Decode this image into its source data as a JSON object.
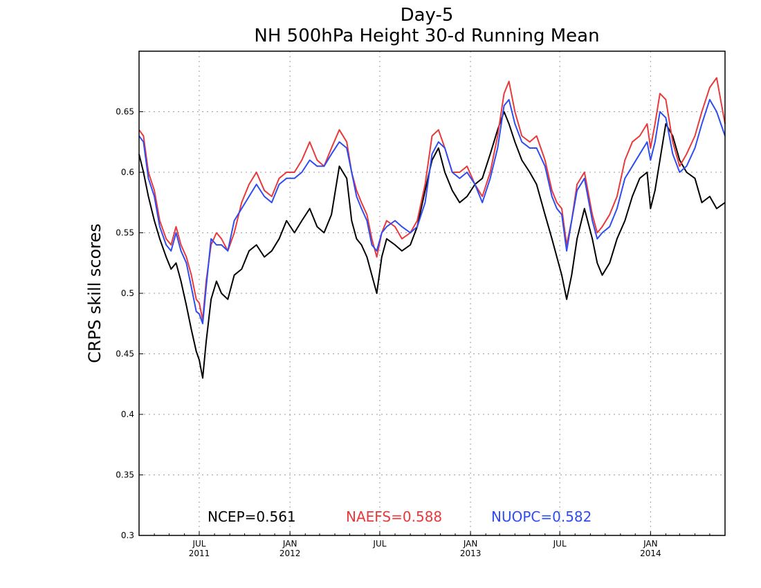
{
  "chart_data": {
    "type": "line",
    "title": "Day-5",
    "subtitle": "NH 500hPa Height 30-d Running Mean",
    "ylabel": "CRPS skill scores",
    "xlabel": "",
    "xlim": [
      "2011-03-01",
      "2014-06-01"
    ],
    "ylim": [
      0.3,
      0.7
    ],
    "grid": true,
    "legend_position": "bottom-center",
    "y_ticks": [
      {
        "value": 0.3,
        "label": "0.3"
      },
      {
        "value": 0.35,
        "label": "0.35"
      },
      {
        "value": 0.4,
        "label": "0.4"
      },
      {
        "value": 0.45,
        "label": "0.45"
      },
      {
        "value": 0.5,
        "label": "0.5"
      },
      {
        "value": 0.55,
        "label": "0.55"
      },
      {
        "value": 0.6,
        "label": "0.6"
      },
      {
        "value": 0.65,
        "label": "0.65"
      }
    ],
    "x_ticks": [
      {
        "date": "2011-07-01",
        "label": "JUL",
        "year": "2011"
      },
      {
        "date": "2012-01-01",
        "label": "JAN",
        "year": "2012"
      },
      {
        "date": "2012-07-01",
        "label": "JUL",
        "year": ""
      },
      {
        "date": "2013-01-01",
        "label": "JAN",
        "year": "2013"
      },
      {
        "date": "2013-07-01",
        "label": "JUL",
        "year": ""
      },
      {
        "date": "2014-01-01",
        "label": "JAN",
        "year": "2014"
      }
    ],
    "series": [
      {
        "name": "NCEP",
        "mean_label": "NCEP=0.561",
        "color": "#000000",
        "x": [
          "2011-03-01",
          "2011-03-10",
          "2011-03-20",
          "2011-04-01",
          "2011-04-12",
          "2011-04-25",
          "2011-05-05",
          "2011-05-15",
          "2011-05-25",
          "2011-06-05",
          "2011-06-15",
          "2011-06-25",
          "2011-07-01",
          "2011-07-08",
          "2011-07-15",
          "2011-07-25",
          "2011-08-05",
          "2011-08-15",
          "2011-08-28",
          "2011-09-10",
          "2011-09-25",
          "2011-10-10",
          "2011-10-25",
          "2011-11-10",
          "2011-11-25",
          "2011-12-10",
          "2011-12-25",
          "2012-01-10",
          "2012-01-25",
          "2012-02-10",
          "2012-02-25",
          "2012-03-10",
          "2012-03-25",
          "2012-04-10",
          "2012-04-25",
          "2012-05-05",
          "2012-05-15",
          "2012-05-25",
          "2012-06-05",
          "2012-06-15",
          "2012-06-25",
          "2012-07-05",
          "2012-07-15",
          "2012-08-01",
          "2012-08-15",
          "2012-09-01",
          "2012-09-15",
          "2012-10-01",
          "2012-10-15",
          "2012-10-28",
          "2012-11-10",
          "2012-11-25",
          "2012-12-10",
          "2012-12-25",
          "2013-01-10",
          "2013-01-25",
          "2013-02-10",
          "2013-02-25",
          "2013-03-10",
          "2013-03-20",
          "2013-04-01",
          "2013-04-15",
          "2013-05-01",
          "2013-05-15",
          "2013-06-01",
          "2013-06-15",
          "2013-06-25",
          "2013-07-05",
          "2013-07-15",
          "2013-07-25",
          "2013-08-05",
          "2013-08-20",
          "2013-09-05",
          "2013-09-15",
          "2013-09-25",
          "2013-10-10",
          "2013-10-25",
          "2013-11-10",
          "2013-11-25",
          "2013-12-10",
          "2013-12-25",
          "2014-01-01",
          "2014-01-10",
          "2014-01-20",
          "2014-02-01",
          "2014-02-15",
          "2014-03-01",
          "2014-03-15",
          "2014-04-01",
          "2014-04-15",
          "2014-05-01",
          "2014-05-15",
          "2014-06-01"
        ],
        "y": [
          0.615,
          0.6,
          0.58,
          0.56,
          0.545,
          0.53,
          0.52,
          0.525,
          0.51,
          0.49,
          0.47,
          0.452,
          0.445,
          0.43,
          0.46,
          0.495,
          0.51,
          0.5,
          0.495,
          0.515,
          0.52,
          0.535,
          0.54,
          0.53,
          0.535,
          0.545,
          0.56,
          0.55,
          0.56,
          0.57,
          0.555,
          0.55,
          0.565,
          0.605,
          0.595,
          0.56,
          0.545,
          0.54,
          0.53,
          0.515,
          0.5,
          0.53,
          0.545,
          0.54,
          0.535,
          0.54,
          0.555,
          0.585,
          0.61,
          0.62,
          0.6,
          0.585,
          0.575,
          0.58,
          0.59,
          0.595,
          0.615,
          0.635,
          0.65,
          0.64,
          0.625,
          0.61,
          0.6,
          0.59,
          0.565,
          0.545,
          0.53,
          0.515,
          0.495,
          0.515,
          0.545,
          0.57,
          0.545,
          0.525,
          0.515,
          0.525,
          0.545,
          0.56,
          0.58,
          0.595,
          0.6,
          0.57,
          0.585,
          0.61,
          0.64,
          0.63,
          0.61,
          0.6,
          0.595,
          0.575,
          0.58,
          0.57,
          0.575
        ]
      },
      {
        "name": "NAEFS",
        "mean_label": "NAEFS=0.588",
        "color": "#e8393b",
        "x": [
          "2011-03-01",
          "2011-03-10",
          "2011-03-20",
          "2011-04-01",
          "2011-04-12",
          "2011-04-25",
          "2011-05-05",
          "2011-05-15",
          "2011-05-25",
          "2011-06-05",
          "2011-06-15",
          "2011-06-25",
          "2011-07-01",
          "2011-07-08",
          "2011-07-15",
          "2011-07-25",
          "2011-08-05",
          "2011-08-15",
          "2011-08-28",
          "2011-09-10",
          "2011-09-25",
          "2011-10-10",
          "2011-10-25",
          "2011-11-10",
          "2011-11-25",
          "2011-12-10",
          "2011-12-25",
          "2012-01-10",
          "2012-01-25",
          "2012-02-10",
          "2012-02-25",
          "2012-03-10",
          "2012-03-25",
          "2012-04-10",
          "2012-04-25",
          "2012-05-05",
          "2012-05-15",
          "2012-05-25",
          "2012-06-05",
          "2012-06-15",
          "2012-06-25",
          "2012-07-05",
          "2012-07-15",
          "2012-08-01",
          "2012-08-15",
          "2012-09-01",
          "2012-09-15",
          "2012-10-01",
          "2012-10-15",
          "2012-10-28",
          "2012-11-10",
          "2012-11-25",
          "2012-12-10",
          "2012-12-25",
          "2013-01-10",
          "2013-01-25",
          "2013-02-10",
          "2013-02-25",
          "2013-03-10",
          "2013-03-20",
          "2013-04-01",
          "2013-04-15",
          "2013-05-01",
          "2013-05-15",
          "2013-06-01",
          "2013-06-15",
          "2013-06-25",
          "2013-07-05",
          "2013-07-15",
          "2013-07-25",
          "2013-08-05",
          "2013-08-20",
          "2013-09-05",
          "2013-09-15",
          "2013-09-25",
          "2013-10-10",
          "2013-10-25",
          "2013-11-10",
          "2013-11-25",
          "2013-12-10",
          "2013-12-25",
          "2014-01-01",
          "2014-01-10",
          "2014-01-20",
          "2014-02-01",
          "2014-02-15",
          "2014-03-01",
          "2014-03-15",
          "2014-04-01",
          "2014-04-15",
          "2014-05-01",
          "2014-05-15",
          "2014-06-01"
        ],
        "y": [
          0.635,
          0.63,
          0.6,
          0.585,
          0.56,
          0.545,
          0.54,
          0.555,
          0.54,
          0.53,
          0.515,
          0.495,
          0.492,
          0.478,
          0.51,
          0.54,
          0.55,
          0.545,
          0.535,
          0.55,
          0.575,
          0.59,
          0.6,
          0.585,
          0.58,
          0.595,
          0.6,
          0.6,
          0.61,
          0.625,
          0.61,
          0.605,
          0.62,
          0.635,
          0.625,
          0.6,
          0.585,
          0.575,
          0.565,
          0.545,
          0.53,
          0.55,
          0.56,
          0.555,
          0.545,
          0.55,
          0.56,
          0.59,
          0.63,
          0.635,
          0.62,
          0.6,
          0.6,
          0.605,
          0.59,
          0.58,
          0.6,
          0.63,
          0.665,
          0.675,
          0.65,
          0.63,
          0.625,
          0.63,
          0.61,
          0.585,
          0.575,
          0.57,
          0.54,
          0.56,
          0.59,
          0.6,
          0.565,
          0.55,
          0.555,
          0.565,
          0.58,
          0.61,
          0.625,
          0.63,
          0.64,
          0.62,
          0.64,
          0.665,
          0.66,
          0.625,
          0.605,
          0.615,
          0.63,
          0.65,
          0.67,
          0.678,
          0.64
        ]
      },
      {
        "name": "NUOPC",
        "mean_label": "NUOPC=0.582",
        "color": "#2e4cf0",
        "x": [
          "2011-03-01",
          "2011-03-10",
          "2011-03-20",
          "2011-04-01",
          "2011-04-12",
          "2011-04-25",
          "2011-05-05",
          "2011-05-15",
          "2011-05-25",
          "2011-06-05",
          "2011-06-15",
          "2011-06-25",
          "2011-07-01",
          "2011-07-08",
          "2011-07-15",
          "2011-07-25",
          "2011-08-05",
          "2011-08-15",
          "2011-08-28",
          "2011-09-10",
          "2011-09-25",
          "2011-10-10",
          "2011-10-25",
          "2011-11-10",
          "2011-11-25",
          "2011-12-10",
          "2011-12-25",
          "2012-01-10",
          "2012-01-25",
          "2012-02-10",
          "2012-02-25",
          "2012-03-10",
          "2012-03-25",
          "2012-04-10",
          "2012-04-25",
          "2012-05-05",
          "2012-05-15",
          "2012-05-25",
          "2012-06-05",
          "2012-06-15",
          "2012-06-25",
          "2012-07-05",
          "2012-07-15",
          "2012-08-01",
          "2012-08-15",
          "2012-09-01",
          "2012-09-15",
          "2012-10-01",
          "2012-10-15",
          "2012-10-28",
          "2012-11-10",
          "2012-11-25",
          "2012-12-10",
          "2012-12-25",
          "2013-01-10",
          "2013-01-25",
          "2013-02-10",
          "2013-02-25",
          "2013-03-10",
          "2013-03-20",
          "2013-04-01",
          "2013-04-15",
          "2013-05-01",
          "2013-05-15",
          "2013-06-01",
          "2013-06-15",
          "2013-06-25",
          "2013-07-05",
          "2013-07-15",
          "2013-07-25",
          "2013-08-05",
          "2013-08-20",
          "2013-09-05",
          "2013-09-15",
          "2013-09-25",
          "2013-10-10",
          "2013-10-25",
          "2013-11-10",
          "2013-11-25",
          "2013-12-10",
          "2013-12-25",
          "2014-01-01",
          "2014-01-10",
          "2014-01-20",
          "2014-02-01",
          "2014-02-15",
          "2014-03-01",
          "2014-03-15",
          "2014-04-01",
          "2014-04-15",
          "2014-05-01",
          "2014-05-15",
          "2014-06-01"
        ],
        "y": [
          0.63,
          0.625,
          0.595,
          0.58,
          0.555,
          0.54,
          0.535,
          0.55,
          0.535,
          0.525,
          0.505,
          0.485,
          0.483,
          0.475,
          0.505,
          0.545,
          0.54,
          0.54,
          0.535,
          0.56,
          0.57,
          0.58,
          0.59,
          0.58,
          0.575,
          0.59,
          0.595,
          0.595,
          0.6,
          0.61,
          0.605,
          0.605,
          0.615,
          0.625,
          0.62,
          0.6,
          0.58,
          0.57,
          0.56,
          0.54,
          0.535,
          0.55,
          0.555,
          0.56,
          0.555,
          0.55,
          0.555,
          0.575,
          0.615,
          0.625,
          0.62,
          0.6,
          0.595,
          0.6,
          0.59,
          0.575,
          0.595,
          0.62,
          0.655,
          0.66,
          0.64,
          0.625,
          0.62,
          0.62,
          0.605,
          0.58,
          0.57,
          0.565,
          0.535,
          0.56,
          0.585,
          0.595,
          0.56,
          0.545,
          0.55,
          0.555,
          0.57,
          0.595,
          0.605,
          0.615,
          0.625,
          0.61,
          0.625,
          0.65,
          0.645,
          0.615,
          0.6,
          0.605,
          0.62,
          0.64,
          0.66,
          0.65,
          0.63
        ]
      }
    ]
  }
}
